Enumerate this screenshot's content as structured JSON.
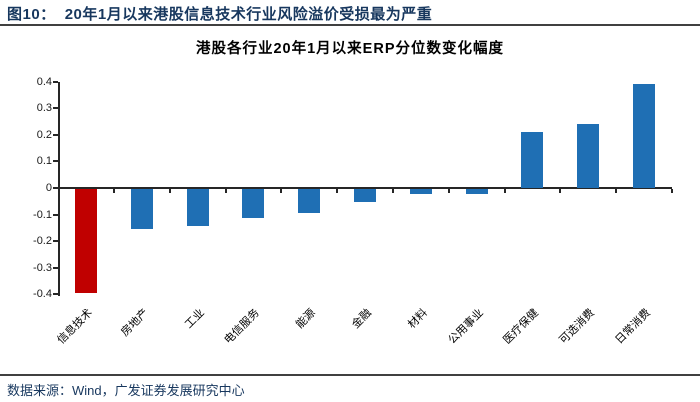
{
  "header": {
    "figure_label": "图10：",
    "title": "20年1月以来港股信息技术行业风险溢价受损最为严重"
  },
  "chart_data": {
    "type": "bar",
    "title": "港股各行业20年1月以来ERP分位数变化幅度",
    "categories": [
      "信息技术",
      "房地产",
      "工业",
      "电信服务",
      "能源",
      "金融",
      "材料",
      "公用事业",
      "医疗保健",
      "可选消费",
      "日常消费"
    ],
    "values": [
      -0.39,
      -0.15,
      -0.14,
      -0.11,
      -0.09,
      -0.05,
      -0.02,
      -0.02,
      0.21,
      0.24,
      0.39
    ],
    "bar_colors": [
      "#C00000",
      "#1F6FB4",
      "#1F6FB4",
      "#1F6FB4",
      "#1F6FB4",
      "#1F6FB4",
      "#1F6FB4",
      "#1F6FB4",
      "#1F6FB4",
      "#1F6FB4",
      "#1F6FB4"
    ],
    "xlabel": "",
    "ylabel": "",
    "ylim": [
      -0.4,
      0.4
    ],
    "ytick_step": 0.1,
    "grid": false,
    "legend": "none"
  },
  "footer": {
    "source": "数据来源：Wind，广发证券发展研究中心"
  },
  "colors": {
    "header_text": "#17375E",
    "divider_rule": "#404040",
    "axis": "#262626",
    "bar_blue": "#1F6FB4",
    "bar_red": "#C00000"
  }
}
